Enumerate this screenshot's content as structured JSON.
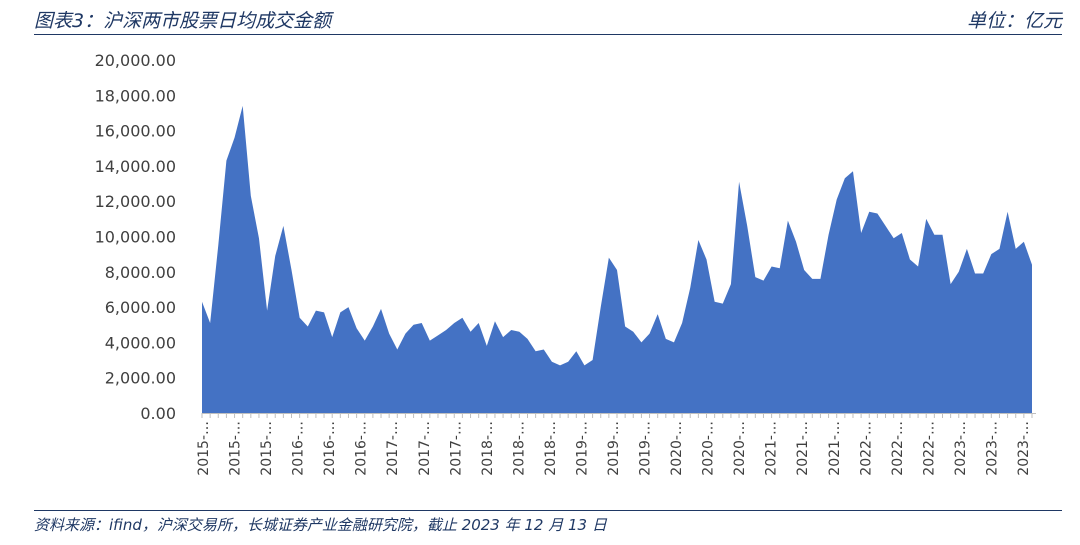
{
  "header": {
    "title": "图表3：沪深两市股票日均成交金额",
    "unit": "单位：亿元"
  },
  "footer": {
    "source": "资料来源：ifind，沪深交易所，长城证券产业金融研究院，截止 2023 年 12 月 13 日"
  },
  "colors": {
    "area": "#4472c4",
    "rule": "#1f3864",
    "axis": "#bfbfbf",
    "text": "#404040"
  },
  "chart_data": {
    "type": "area",
    "title": "",
    "xlabel": "",
    "ylabel": "",
    "ylim": [
      0,
      20000
    ],
    "y_ticks": [
      "0.00",
      "2,000.00",
      "4,000.00",
      "6,000.00",
      "8,000.00",
      "10,000.00",
      "12,000.00",
      "14,000.00",
      "16,000.00",
      "18,000.00",
      "20,000.00"
    ],
    "x_tick_labels": [
      "2015-…",
      "2015-…",
      "2015-…",
      "2016-…",
      "2016-…",
      "2016-…",
      "2017-…",
      "2017-…",
      "2017-…",
      "2018-…",
      "2018-…",
      "2018-…",
      "2019-…",
      "2019-…",
      "2019-…",
      "2020-…",
      "2020-…",
      "2020-…",
      "2021-…",
      "2021-…",
      "2021-…",
      "2022-…",
      "2022-…",
      "2022-…",
      "2023-…",
      "2023-…",
      "2023-…"
    ],
    "grid": false,
    "legend": "none",
    "series": [
      {
        "name": "",
        "values": [
          6300,
          5100,
          9500,
          14300,
          15600,
          17400,
          12300,
          9900,
          5800,
          8900,
          10600,
          8100,
          5400,
          4900,
          5800,
          5700,
          4300,
          5700,
          6000,
          4800,
          4100,
          4900,
          5900,
          4500,
          3600,
          4500,
          5000,
          5100,
          4100,
          4400,
          4700,
          5100,
          5400,
          4600,
          5100,
          3800,
          5200,
          4300,
          4700,
          4600,
          4200,
          3500,
          3600,
          2900,
          2700,
          2900,
          3500,
          2700,
          3000,
          6000,
          8800,
          8100,
          4900,
          4600,
          4000,
          4500,
          5600,
          4200,
          4000,
          5100,
          7100,
          9800,
          8700,
          6300,
          6200,
          7300,
          13100,
          10600,
          7700,
          7500,
          8300,
          8200,
          10900,
          9700,
          8100,
          7600,
          7600,
          10100,
          12100,
          13300,
          13700,
          10200,
          11400,
          11300,
          10600,
          9900,
          10200,
          8700,
          8300,
          11000,
          10100,
          10100,
          7300,
          8000,
          9300,
          7900,
          7900,
          9000,
          9300,
          11400,
          9300,
          9700,
          8400
        ]
      }
    ]
  }
}
